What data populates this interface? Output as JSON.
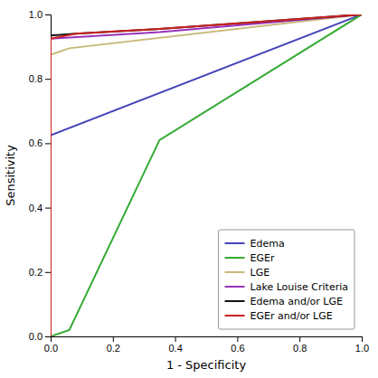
{
  "chart_data": {
    "type": "line",
    "xlabel": "1 - Specificity",
    "ylabel": "Sensitivity",
    "xlim": [
      0.0,
      1.0
    ],
    "ylim": [
      0.0,
      1.0
    ],
    "xticks": [
      {
        "value": 0,
        "label": "0.0"
      },
      0.2,
      0.4,
      0.6,
      0.8,
      {
        "value": 1,
        "label": "1.0"
      }
    ],
    "yticks": [
      {
        "value": 0,
        "label": "0.0"
      },
      0.2,
      0.4,
      0.6,
      0.8,
      {
        "value": 1,
        "label": "1.0"
      }
    ],
    "grid": false,
    "legend": "lower right",
    "series": [
      {
        "name": "Edema",
        "color": "#4444bb",
        "x": [
          0.0,
          0.0,
          1.0
        ],
        "values": [
          0.0,
          0.625,
          1.0
        ]
      },
      {
        "name": "EGEr",
        "color": "#33aa33",
        "x": [
          0.0,
          0.06,
          0.35,
          1.0
        ],
        "values": [
          0.0,
          0.02,
          0.61,
          1.0
        ]
      },
      {
        "name": "LGE",
        "color": "#c8b87a",
        "x": [
          0.0,
          0.0,
          0.06,
          1.0
        ],
        "values": [
          0.0,
          0.875,
          0.895,
          1.0
        ]
      },
      {
        "name": "Lake Louise Criteria",
        "color": "#9933bb",
        "x": [
          0.0,
          0.0,
          0.35,
          1.0
        ],
        "values": [
          0.0,
          0.925,
          0.945,
          1.0
        ]
      },
      {
        "name": "Edema and/or LGE",
        "color": "#111111",
        "x": [
          0.0,
          0.0,
          0.08,
          0.35,
          1.0
        ],
        "values": [
          0.0,
          0.935,
          0.94,
          0.955,
          1.0
        ]
      },
      {
        "name": "EGEr and/or LGE",
        "color": "#cc2222",
        "x": [
          0.0,
          0.0,
          0.08,
          0.35,
          1.0
        ],
        "values": [
          0.0,
          0.925,
          0.94,
          0.955,
          1.0
        ]
      }
    ]
  }
}
